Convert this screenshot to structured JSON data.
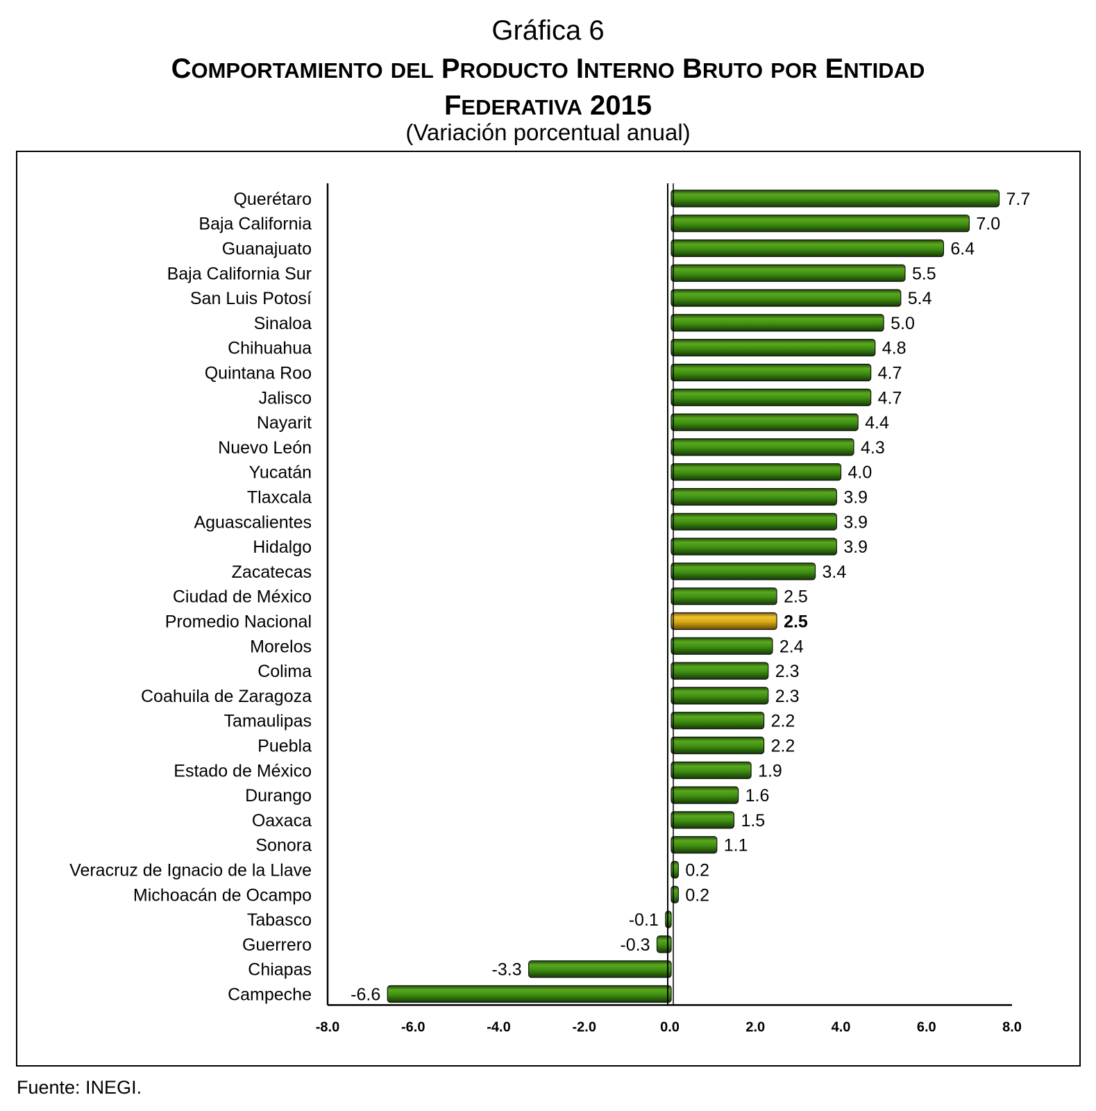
{
  "header": {
    "caption": "Gráfica 6",
    "title_line1": "Comportamiento del Producto Interno Bruto por Entidad",
    "title_line2": "Federativa 2015",
    "subtitle": "(Variación porcentual anual)"
  },
  "footer": {
    "source": "Fuente: INEGI."
  },
  "colors": {
    "bar": "#3f8f12",
    "highlight": "#d7a812",
    "axis": "#000000"
  },
  "chart_data": {
    "type": "bar",
    "orientation": "horizontal",
    "title": "Comportamiento del Producto Interno Bruto por Entidad Federativa 2015",
    "subtitle": "(Variación porcentual anual)",
    "xlim": [
      -8.0,
      8.0
    ],
    "xticks": [
      "-8.0",
      "-6.0",
      "-4.0",
      "-2.0",
      "0.0",
      "2.0",
      "4.0",
      "6.0",
      "8.0"
    ],
    "grid": false,
    "legend": "none",
    "highlight": "Promedio Nacional",
    "categories": [
      "Querétaro",
      "Baja California",
      "Guanajuato",
      "Baja California Sur",
      "San Luis Potosí",
      "Sinaloa",
      "Chihuahua",
      "Quintana Roo",
      "Jalisco",
      "Nayarit",
      "Nuevo León",
      "Yucatán",
      "Tlaxcala",
      "Aguascalientes",
      "Hidalgo",
      "Zacatecas",
      "Ciudad de México",
      "Promedio Nacional",
      "Morelos",
      "Colima",
      "Coahuila de Zaragoza",
      "Tamaulipas",
      "Puebla",
      "Estado de México",
      "Durango",
      "Oaxaca",
      "Sonora",
      "Veracruz de Ignacio de la Llave",
      "Michoacán de Ocampo",
      "Tabasco",
      "Guerrero",
      "Chiapas",
      "Campeche"
    ],
    "values": [
      7.7,
      7.0,
      6.4,
      5.5,
      5.4,
      5.0,
      4.8,
      4.7,
      4.7,
      4.4,
      4.3,
      4.0,
      3.9,
      3.9,
      3.9,
      3.4,
      2.5,
      2.5,
      2.4,
      2.3,
      2.3,
      2.2,
      2.2,
      1.9,
      1.6,
      1.5,
      1.1,
      0.2,
      0.2,
      -0.1,
      -0.3,
      -3.3,
      -6.6
    ],
    "labels": [
      "7.7",
      "7.0",
      "6.4",
      "5.5",
      "5.4",
      "5.0",
      "4.8",
      "4.7",
      "4.7",
      "4.4",
      "4.3",
      "4.0",
      "3.9",
      "3.9",
      "3.9",
      "3.4",
      "2.5",
      "2.5",
      "2.4",
      "2.3",
      "2.3",
      "2.2",
      "2.2",
      "1.9",
      "1.6",
      "1.5",
      "1.1",
      "0.2",
      "0.2",
      "-0.1",
      "-0.3",
      "-3.3",
      "-6.6"
    ]
  }
}
